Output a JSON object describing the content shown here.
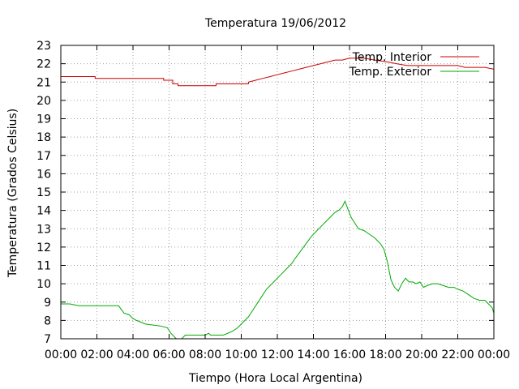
{
  "chart_data": {
    "type": "line",
    "title": "Temperatura 19/06/2012",
    "xlabel": "Tiempo (Hora Local Argentina)",
    "ylabel": "Temperatura (Grados Celsius)",
    "xlim": [
      0,
      24
    ],
    "ylim": [
      7,
      23
    ],
    "x_ticks": [
      "00:00",
      "02:00",
      "04:00",
      "06:00",
      "08:00",
      "10:00",
      "12:00",
      "14:00",
      "16:00",
      "18:00",
      "20:00",
      "22:00",
      "00:00"
    ],
    "y_ticks": [
      7,
      8,
      9,
      10,
      11,
      12,
      13,
      14,
      15,
      16,
      17,
      18,
      19,
      20,
      21,
      22,
      23
    ],
    "grid": true,
    "legend_position": "top-right",
    "series": [
      {
        "name": "Temp. Interior",
        "color": "#cc0000",
        "x": [
          0,
          1.9,
          1.9,
          2.3,
          2.3,
          5.7,
          5.7,
          6.2,
          6.2,
          6.5,
          6.5,
          8.6,
          8.6,
          9.0,
          9.0,
          10.4,
          10.4,
          10.8,
          11.2,
          11.6,
          12.0,
          12.4,
          12.8,
          13.2,
          13.6,
          14.0,
          14.4,
          14.8,
          15.2,
          15.6,
          16.0,
          16.8,
          17.4,
          18.1,
          18.6,
          19.2,
          20.0,
          21.0,
          22.0,
          22.4,
          23.0,
          23.5,
          24.0
        ],
        "y": [
          21.3,
          21.3,
          21.2,
          21.2,
          21.2,
          21.2,
          21.1,
          21.1,
          20.9,
          20.9,
          20.8,
          20.8,
          20.9,
          20.9,
          20.9,
          20.9,
          21.0,
          21.1,
          21.2,
          21.3,
          21.4,
          21.5,
          21.6,
          21.7,
          21.8,
          21.9,
          22.0,
          22.1,
          22.2,
          22.2,
          22.3,
          22.3,
          22.2,
          22.1,
          22.0,
          21.9,
          21.9,
          21.9,
          21.9,
          21.8,
          21.8,
          21.8,
          21.7
        ]
      },
      {
        "name": "Temp. Exterior",
        "color": "#00aa00",
        "x": [
          0,
          0.5,
          1.0,
          2.0,
          3.2,
          3.5,
          3.8,
          4.0,
          4.2,
          4.7,
          5.5,
          5.9,
          6.1,
          6.4,
          6.7,
          6.9,
          8.0,
          8.2,
          8.3,
          9.0,
          9.5,
          9.8,
          10.0,
          10.2,
          10.4,
          10.6,
          10.8,
          11.0,
          11.2,
          11.4,
          11.6,
          11.8,
          12.0,
          12.2,
          12.5,
          12.8,
          13.0,
          13.3,
          13.6,
          13.9,
          14.2,
          14.5,
          14.8,
          15.0,
          15.2,
          15.4,
          15.6,
          15.75,
          15.9,
          16.1,
          16.3,
          16.5,
          16.8,
          17.1,
          17.4,
          17.7,
          17.9,
          18.1,
          18.3,
          18.5,
          18.7,
          18.9,
          19.1,
          19.3,
          19.5,
          19.7,
          19.9,
          20.1,
          20.3,
          20.6,
          20.9,
          21.2,
          21.5,
          21.8,
          22.0,
          22.3,
          22.6,
          22.9,
          23.2,
          23.5,
          23.7,
          23.9,
          24.0
        ],
        "y": [
          8.9,
          8.9,
          8.8,
          8.8,
          8.8,
          8.4,
          8.3,
          8.1,
          8.0,
          7.8,
          7.7,
          7.6,
          7.3,
          7.0,
          7.0,
          7.2,
          7.2,
          7.3,
          7.2,
          7.2,
          7.4,
          7.6,
          7.8,
          8.0,
          8.2,
          8.5,
          8.8,
          9.1,
          9.4,
          9.7,
          9.9,
          10.1,
          10.3,
          10.5,
          10.8,
          11.1,
          11.4,
          11.8,
          12.2,
          12.6,
          12.9,
          13.2,
          13.5,
          13.7,
          13.9,
          14.0,
          14.2,
          14.5,
          14.1,
          13.6,
          13.3,
          13.0,
          12.9,
          12.7,
          12.5,
          12.2,
          11.9,
          11.2,
          10.2,
          9.8,
          9.6,
          10.0,
          10.3,
          10.1,
          10.1,
          10.0,
          10.1,
          9.8,
          9.9,
          10.0,
          10.0,
          9.9,
          9.8,
          9.8,
          9.7,
          9.6,
          9.4,
          9.2,
          9.1,
          9.1,
          8.9,
          8.7,
          8.4
        ]
      }
    ]
  }
}
